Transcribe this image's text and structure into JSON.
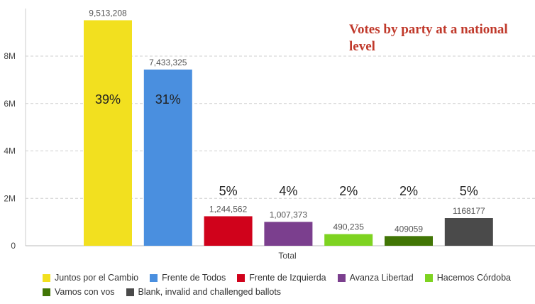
{
  "chart_data": {
    "type": "bar",
    "title": "Votes by party at a national level",
    "xlabel": "Total",
    "ylabel": "",
    "ylim": [
      0,
      10000000
    ],
    "y_ticks": [
      {
        "value": 0,
        "label": "0"
      },
      {
        "value": 2000000,
        "label": "2M"
      },
      {
        "value": 4000000,
        "label": "4M"
      },
      {
        "value": 6000000,
        "label": "6M"
      },
      {
        "value": 8000000,
        "label": "8M"
      }
    ],
    "grid": true,
    "legend_position": "bottom",
    "categories": [
      "Total"
    ],
    "series": [
      {
        "name": "Juntos por el Cambio",
        "value": 9513208,
        "value_label": "9,513,208",
        "pct_label": "39%",
        "color": "#f2e01f"
      },
      {
        "name": "Frente de Todos",
        "value": 7433325,
        "value_label": "7,433,325",
        "pct_label": "31%",
        "color": "#4a8fdf"
      },
      {
        "name": "Frente de Izquierda",
        "value": 1244562,
        "value_label": "1,244,562",
        "pct_label": "5%",
        "color": "#d0021b"
      },
      {
        "name": "Avanza Libertad",
        "value": 1007373,
        "value_label": "1,007,373",
        "pct_label": "4%",
        "color": "#7b3f8e"
      },
      {
        "name": "Hacemos Córdoba",
        "value": 490235,
        "value_label": "490,235",
        "pct_label": "2%",
        "color": "#7ed321"
      },
      {
        "name": "Vamos con vos",
        "value": 409059,
        "value_label": "409059",
        "pct_label": "2%",
        "color": "#417505"
      },
      {
        "name": "Blank, invalid and challenged ballots",
        "value": 1168177,
        "value_label": "1168177",
        "pct_label": "5%",
        "color": "#4a4a4a"
      }
    ]
  }
}
